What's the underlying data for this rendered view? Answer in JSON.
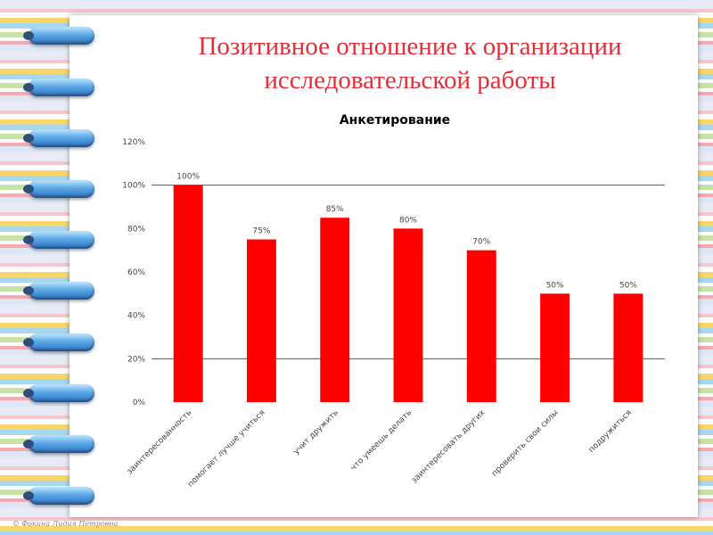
{
  "slide": {
    "title_line1": "Позитивное отношение к организации",
    "title_line2": "исследовательской работы",
    "footer": "© Фокина Лидия Петровна"
  },
  "colors": {
    "bar": "#ff0000",
    "title": "#e0303a"
  },
  "chart_data": {
    "type": "bar",
    "title": "Анкетирование",
    "categories": [
      "заинтересованность",
      "помогает лучше учиться",
      "учит дружить",
      "что умеешь делать",
      "заинтересовать других",
      "проверить свои силы",
      "подружиться"
    ],
    "values": [
      1.0,
      0.75,
      0.85,
      0.8,
      0.7,
      0.5,
      0.5
    ],
    "data_labels": [
      "100%",
      "75%",
      "85%",
      "80%",
      "70%",
      "50%",
      "50%"
    ],
    "yticks": [
      "0%",
      "20%",
      "40%",
      "60%",
      "80%",
      "100%",
      "120%"
    ],
    "ylim": [
      0,
      1.2
    ],
    "grid_values": [
      0.2,
      1.0
    ],
    "xlabel": "",
    "ylabel": "",
    "legend": "none"
  }
}
